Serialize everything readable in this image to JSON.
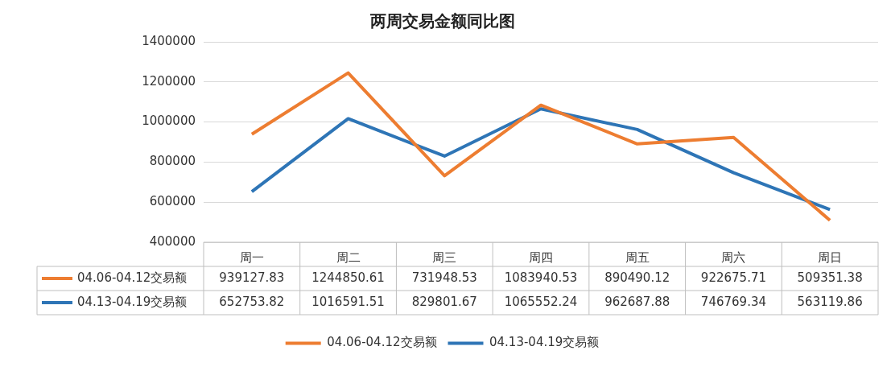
{
  "chart_data": {
    "type": "line",
    "title": "两周交易金额同比图",
    "categories": [
      "周一",
      "周二",
      "周三",
      "周四",
      "周五",
      "周六",
      "周日"
    ],
    "series": [
      {
        "name": "04.06-04.12交易额",
        "color": "#ed7d31",
        "values": [
          939127.83,
          1244850.61,
          731948.53,
          1083940.53,
          890490.12,
          922675.71,
          509351.38
        ]
      },
      {
        "name": "04.13-04.19交易额",
        "color": "#2e75b6",
        "values": [
          652753.82,
          1016591.51,
          829801.67,
          1065552.24,
          962687.88,
          746769.34,
          563119.86
        ]
      }
    ],
    "ylim": [
      400000,
      1400000
    ],
    "yticks": [
      400000,
      600000,
      800000,
      1000000,
      1200000,
      1400000
    ],
    "grid": true,
    "legend": "bottom",
    "data_labels": true,
    "marker": "none"
  }
}
